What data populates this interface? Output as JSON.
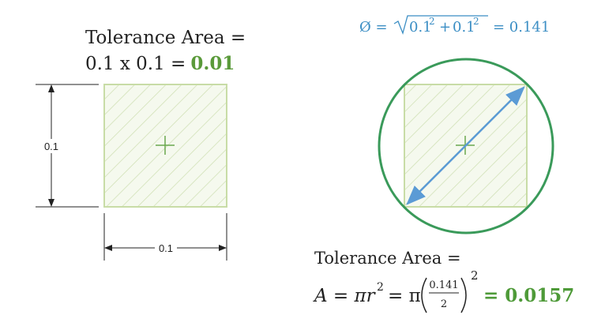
{
  "left": {
    "title": "Tolerance Area =",
    "formula": "0.1 x 0.1 =",
    "result": "0.01",
    "height_label": "0.1",
    "width_label": "0.1"
  },
  "right": {
    "diameter_formula": {
      "symbol": "Ø =",
      "term1": "0.1",
      "exp1": "2",
      "plus": "+",
      "term2": "0.1",
      "exp2": "2",
      "result": "= 0.141"
    },
    "title": "Tolerance Area =",
    "area_formula": {
      "lhs": "A = πr",
      "exp": "2",
      "eq": "= π",
      "numerator": "0.141",
      "denominator": "2",
      "outer_exp": "2",
      "result": "= 0.0157"
    }
  }
}
